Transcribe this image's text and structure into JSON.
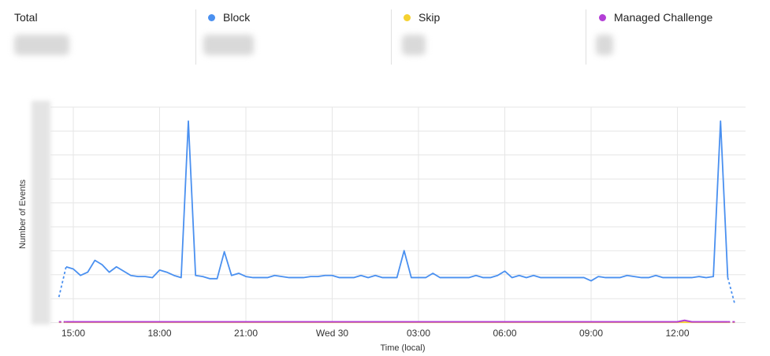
{
  "stats": {
    "total_label": "Total",
    "block_label": "Block",
    "skip_label": "Skip",
    "managed_label": "Managed Challenge"
  },
  "colors": {
    "block": "#4a90f0",
    "skip": "#f5d130",
    "managed": "#b33fd6",
    "grid": "#e6e6e6"
  },
  "chart_data": {
    "type": "line",
    "xlabel": "Time (local)",
    "ylabel": "Number of Events",
    "x_ticks": [
      "15:00",
      "18:00",
      "21:00",
      "Wed 30",
      "03:00",
      "06:00",
      "09:00",
      "12:00"
    ],
    "grid": true,
    "y_tick_labels_obscured": true,
    "x_start_hours": 14.5,
    "x_step_minutes": 15,
    "ylim": [
      0,
      100
    ],
    "series": [
      {
        "name": "Block",
        "values": [
          12,
          26,
          25,
          22,
          23.5,
          29,
          27,
          23.5,
          26,
          24,
          22,
          21.5,
          21.5,
          21,
          24.5,
          23.5,
          22,
          21,
          93.5,
          22,
          21.5,
          20.5,
          20.5,
          33,
          22,
          23,
          21.5,
          21,
          21,
          21,
          22,
          21.5,
          21,
          21,
          21,
          21.5,
          21.5,
          22,
          22,
          21,
          21,
          21,
          22,
          21,
          22,
          21,
          21,
          21,
          33.5,
          21,
          21,
          21,
          23,
          21,
          21,
          21,
          21,
          21,
          22,
          21,
          21,
          22,
          24,
          21,
          22,
          21,
          22,
          21,
          21,
          21,
          21,
          21,
          21,
          21,
          19.5,
          21.5,
          21,
          21,
          21,
          22,
          21.5,
          21,
          21,
          22,
          21,
          21,
          21,
          21,
          21,
          21.5,
          21,
          21.5,
          93.5,
          21,
          8.5
        ]
      },
      {
        "name": "Skip",
        "values": [
          0.3,
          0.3,
          0.3,
          0.3,
          0.3,
          0.3,
          0.3,
          0.3,
          0.3,
          0.3,
          0.3,
          0.3,
          0.3,
          0.3,
          0.3,
          0.3,
          0.3,
          0.3,
          0.3,
          0.3,
          0.3,
          0.3,
          0.3,
          0.3,
          0.3,
          0.3,
          0.3,
          0.3,
          0.3,
          0.3,
          0.3,
          0.3,
          0.3,
          0.3,
          0.3,
          0.3,
          0.3,
          0.3,
          0.3,
          0.3,
          0.3,
          0.3,
          0.3,
          0.3,
          0.3,
          0.3,
          0.3,
          0.3,
          0.3,
          0.3,
          0.3,
          0.3,
          0.3,
          0.3,
          0.3,
          0.3,
          0.3,
          0.3,
          0.3,
          0.3,
          0.3,
          0.3,
          0.3,
          0.3,
          0.3,
          0.3,
          0.3,
          0.3,
          0.3,
          0.3,
          0.3,
          0.3,
          0.3,
          0.3,
          0.3,
          0.3,
          0.3,
          0.3,
          0.3,
          0.3,
          0.3,
          0.3,
          0.3,
          0.3,
          0.3,
          0.3,
          0.3,
          0.3,
          0.3,
          0.3,
          0.3,
          0.3,
          0.3,
          0.3,
          0.3
        ]
      },
      {
        "name": "Managed Challenge",
        "values": [
          0.5,
          0.5,
          0.5,
          0.5,
          0.5,
          0.5,
          0.5,
          0.5,
          0.5,
          0.5,
          0.5,
          0.5,
          0.5,
          0.5,
          0.5,
          0.5,
          0.5,
          0.5,
          0.5,
          0.5,
          0.5,
          0.5,
          0.5,
          0.5,
          0.5,
          0.5,
          0.5,
          0.5,
          0.5,
          0.5,
          0.5,
          0.5,
          0.5,
          0.5,
          0.5,
          0.5,
          0.5,
          0.5,
          0.5,
          0.5,
          0.5,
          0.5,
          0.5,
          0.5,
          0.5,
          0.5,
          0.5,
          0.5,
          0.5,
          0.5,
          0.5,
          0.5,
          0.5,
          0.5,
          0.5,
          0.5,
          0.5,
          0.5,
          0.5,
          0.5,
          0.5,
          0.5,
          0.5,
          0.5,
          0.5,
          0.5,
          0.5,
          0.5,
          0.5,
          0.5,
          0.5,
          0.5,
          0.5,
          0.5,
          0.5,
          0.5,
          0.5,
          0.5,
          0.5,
          0.5,
          0.5,
          0.5,
          0.5,
          0.5,
          0.5,
          0.5,
          0.5,
          1.2,
          0.5,
          0.5,
          0.5,
          0.5,
          0.5,
          0.5,
          0.5
        ]
      }
    ]
  }
}
